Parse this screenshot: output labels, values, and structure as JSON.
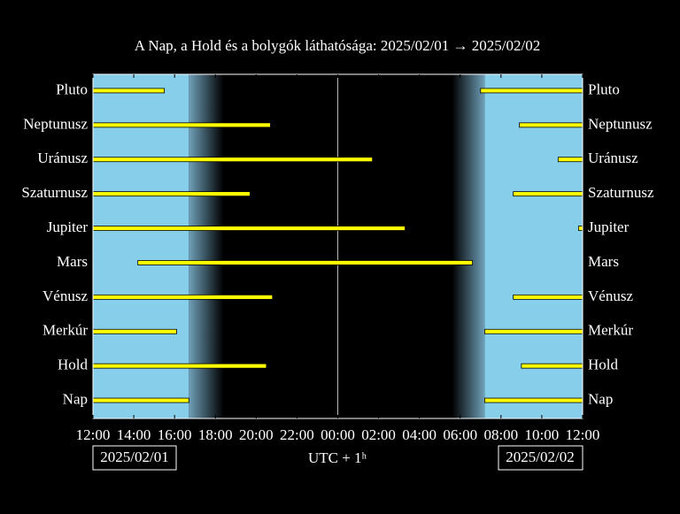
{
  "chart_data": {
    "type": "timeline",
    "title": "A Nap, a Hold és a bolygók láthatósága: 2025/02/01 → 2025/02/02",
    "xlabel": "UTC + 1ʰ",
    "start_date": "2025/02/01",
    "end_date": "2025/02/02",
    "xlim": [
      12,
      36
    ],
    "xticks": [
      {
        "value": 12,
        "label": "12:00"
      },
      {
        "value": 14,
        "label": "14:00"
      },
      {
        "value": 16,
        "label": "16:00"
      },
      {
        "value": 18,
        "label": "18:00"
      },
      {
        "value": 20,
        "label": "20:00"
      },
      {
        "value": 22,
        "label": "22:00"
      },
      {
        "value": 24,
        "label": "00:00"
      },
      {
        "value": 26,
        "label": "02:00"
      },
      {
        "value": 28,
        "label": "04:00"
      },
      {
        "value": 30,
        "label": "06:00"
      },
      {
        "value": 32,
        "label": "08:00"
      },
      {
        "value": 34,
        "label": "10:00"
      },
      {
        "value": 36,
        "label": "12:00"
      }
    ],
    "vline": 24,
    "day_color": "#87ceeb",
    "bar_color": "#ffff00",
    "daylight": [
      [
        12,
        16.7
      ],
      [
        31.2,
        36
      ]
    ],
    "twilight": [
      [
        16.7,
        18.4
      ],
      [
        29.6,
        31.2
      ]
    ],
    "series": [
      {
        "name": "Pluto",
        "values": [
          [
            12,
            15.5
          ],
          [
            31.0,
            36
          ]
        ]
      },
      {
        "name": "Neptunusz",
        "values": [
          [
            12,
            20.7
          ],
          [
            32.9,
            36
          ]
        ]
      },
      {
        "name": "Uránusz",
        "values": [
          [
            12,
            25.7
          ],
          [
            34.8,
            36
          ]
        ]
      },
      {
        "name": "Szaturnusz",
        "values": [
          [
            12,
            19.7
          ],
          [
            32.6,
            36
          ]
        ]
      },
      {
        "name": "Jupiter",
        "values": [
          [
            12,
            27.3
          ],
          [
            35.8,
            36
          ]
        ]
      },
      {
        "name": "Mars",
        "values": [
          [
            14.2,
            30.6
          ]
        ]
      },
      {
        "name": "Vénusz",
        "values": [
          [
            12,
            20.8
          ],
          [
            32.6,
            36
          ]
        ]
      },
      {
        "name": "Merkúr",
        "values": [
          [
            12,
            16.1
          ],
          [
            31.2,
            36
          ]
        ]
      },
      {
        "name": "Hold",
        "values": [
          [
            12,
            20.5
          ],
          [
            33.0,
            36
          ]
        ]
      },
      {
        "name": "Nap",
        "values": [
          [
            12,
            16.7
          ],
          [
            31.2,
            36
          ]
        ]
      }
    ]
  }
}
